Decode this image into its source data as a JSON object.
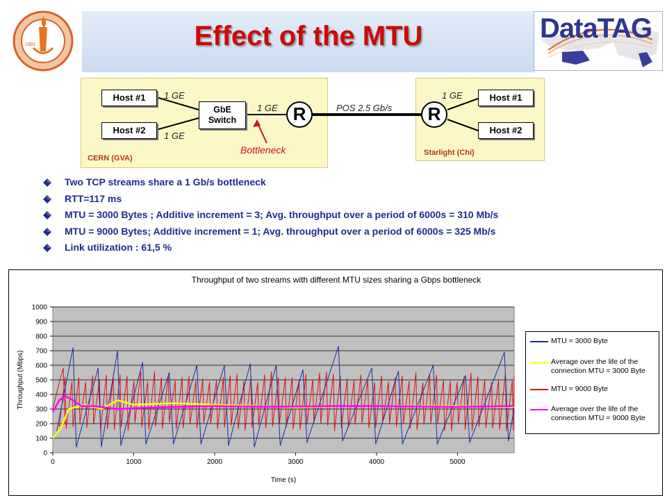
{
  "header": {
    "title": "Effect of the MTU",
    "logo_left_text": "CALIFORNIA INSTITUTE OF TECHNOLOGY",
    "logo_left_year": "1891",
    "logo_right_text": "DataTAG"
  },
  "diagram": {
    "cern_site_label": "CERN (GVA)",
    "starlight_site_label": "Starlight (Chi)",
    "cern_host1": "Host #1",
    "cern_host2": "Host #2",
    "switch_line1": "GbE",
    "switch_line2": "Switch",
    "router_left": "R",
    "router_right": "R",
    "link_host1_switch": "1 GE",
    "link_host2_switch": "1 GE",
    "link_switch_router": "1 GE",
    "link_wan": "POS 2.5 Gb/s",
    "link_star_router": "1 GE",
    "star_host1": "Host #1",
    "star_host2": "Host #2",
    "bottleneck_label": "Bottleneck"
  },
  "bullets": [
    "Two TCP streams share a 1 Gb/s bottleneck",
    "RTT=117 ms",
    "MTU = 3000 Bytes ; Additive increment = 3; Avg. throughput over a period of 6000s = 310 Mb/s",
    "MTU = 9000 Bytes; Additive increment = 1; Avg. throughput over a period of 6000s = 325 Mb/s",
    "Link utilization  : 61,5 %"
  ],
  "colors": {
    "title": "#cc0a00",
    "bullet_text": "#1f2a8c",
    "bullet_icon": "#1f2a8c",
    "mtu3000": "#1a2aa8",
    "avg3000": "#ffff00",
    "mtu9000": "#dd1111",
    "avg9000": "#ff00ff",
    "plot_bg": "#c0c0c0"
  },
  "chart_data": {
    "type": "line",
    "title": "Throughput of two streams with different MTU sizes sharing a Gbps bottleneck",
    "xlabel": "Time (s)",
    "ylabel": "Throughput (Mbps)",
    "xlim": [
      0,
      5700
    ],
    "ylim": [
      0,
      1000
    ],
    "x_ticks": [
      "0",
      "1000",
      "2000",
      "3000",
      "4000",
      "5000"
    ],
    "y_ticks": [
      "0",
      "100",
      "200",
      "300",
      "400",
      "500",
      "600",
      "700",
      "800",
      "900",
      "1000"
    ],
    "grid": "horizontal",
    "legend_position": "right",
    "series": [
      {
        "name": "MTU = 3000 Byte",
        "color": "#1a2aa8",
        "style": "sawtooth",
        "sawtooth": [
          {
            "t": 50,
            "v": 150
          },
          {
            "t": 250,
            "v": 720
          },
          {
            "t": 290,
            "v": 40
          },
          {
            "t": 560,
            "v": 580
          },
          {
            "t": 600,
            "v": 40
          },
          {
            "t": 800,
            "v": 700
          },
          {
            "t": 840,
            "v": 50
          },
          {
            "t": 1110,
            "v": 620
          },
          {
            "t": 1150,
            "v": 60
          },
          {
            "t": 1440,
            "v": 550
          },
          {
            "t": 1490,
            "v": 60
          },
          {
            "t": 1780,
            "v": 600
          },
          {
            "t": 1830,
            "v": 60
          },
          {
            "t": 2120,
            "v": 600
          },
          {
            "t": 2170,
            "v": 50
          },
          {
            "t": 2440,
            "v": 610
          },
          {
            "t": 2490,
            "v": 40
          },
          {
            "t": 2760,
            "v": 600
          },
          {
            "t": 2810,
            "v": 50
          },
          {
            "t": 3090,
            "v": 570
          },
          {
            "t": 3140,
            "v": 70
          },
          {
            "t": 3530,
            "v": 730
          },
          {
            "t": 3580,
            "v": 80
          },
          {
            "t": 3940,
            "v": 580
          },
          {
            "t": 3990,
            "v": 60
          },
          {
            "t": 4270,
            "v": 560
          },
          {
            "t": 4320,
            "v": 60
          },
          {
            "t": 4700,
            "v": 600
          },
          {
            "t": 4750,
            "v": 60
          },
          {
            "t": 5100,
            "v": 530
          },
          {
            "t": 5150,
            "v": 70
          },
          {
            "t": 5580,
            "v": 690
          },
          {
            "t": 5630,
            "v": 80
          },
          {
            "t": 5700,
            "v": 300
          }
        ]
      },
      {
        "name": "Average over the life of the connection MTU = 3000 Byte",
        "color": "#ffff00",
        "x": [
          0,
          100,
          200,
          400,
          600,
          800,
          1000,
          1500,
          2000,
          2500,
          3000,
          3500,
          4000,
          4500,
          5000,
          5700
        ],
        "y": [
          100,
          170,
          300,
          330,
          300,
          360,
          330,
          340,
          330,
          320,
          310,
          320,
          320,
          320,
          320,
          315
        ]
      },
      {
        "name": "MTU = 9000 Byte",
        "color": "#dd1111",
        "style": "sawtooth",
        "sawtooth_period": 85,
        "sawtooth_low": 170,
        "sawtooth_high": 520,
        "x_start": 80,
        "x_end": 5700,
        "initial": {
          "x": [
            0,
            60,
            130,
            150
          ],
          "y": [
            300,
            440,
            580,
            200
          ]
        }
      },
      {
        "name": "Average over the life of the connection MTU = 9000 Byte",
        "color": "#ff00ff",
        "x": [
          0,
          80,
          150,
          250,
          350,
          500,
          800,
          1200,
          2000,
          2800,
          3500,
          4000,
          5000,
          5700
        ],
        "y": [
          280,
          360,
          390,
          360,
          320,
          320,
          300,
          310,
          320,
          315,
          320,
          320,
          315,
          320
        ]
      }
    ]
  }
}
